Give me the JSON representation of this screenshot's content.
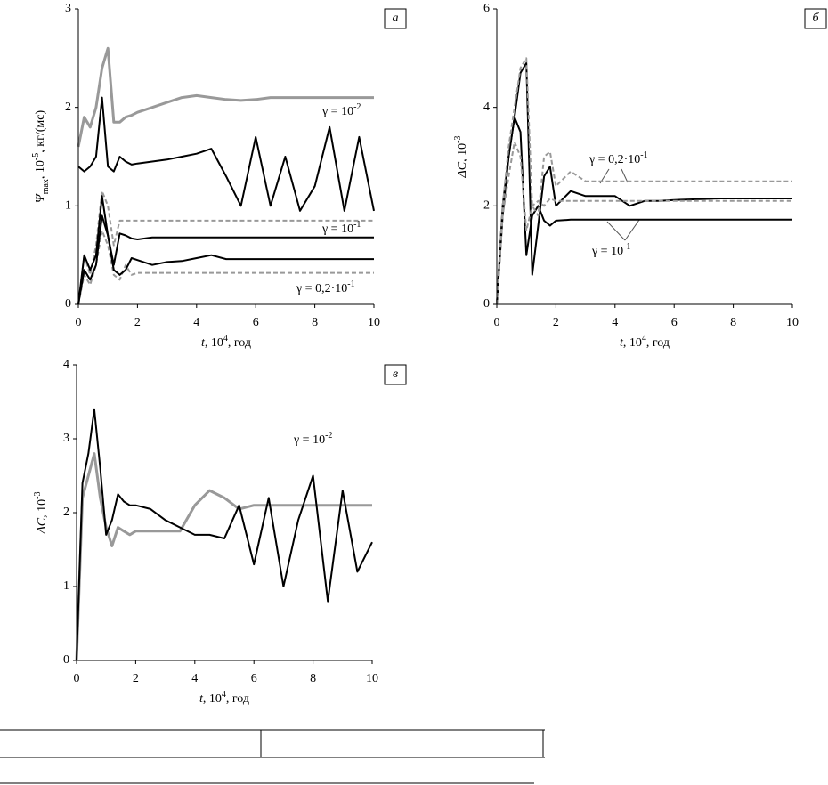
{
  "chart_data": [
    {
      "type": "line",
      "panel": "а",
      "xlabel": [
        {
          "text": "t"
        },
        {
          "text": ", 10"
        },
        {
          "sup": "4"
        },
        {
          "text": ", год"
        }
      ],
      "ylabel": [
        {
          "text": "Ψ"
        },
        {
          "sub": "max"
        },
        {
          "text": ", 10"
        },
        {
          "sup": "-5"
        },
        {
          "text": ", кг/(мс)"
        }
      ],
      "x": [
        0,
        0.2,
        0.4,
        0.6,
        0.8,
        1.0,
        1.2,
        1.4,
        1.6,
        1.8,
        2,
        2.5,
        3,
        3.5,
        4,
        4.5,
        5,
        5.5,
        6,
        6.5,
        7,
        7.5,
        8,
        8.5,
        9,
        9.5,
        10
      ],
      "xlim": [
        0,
        10
      ],
      "xticks": [
        0,
        2,
        4,
        6,
        8,
        10
      ],
      "ylim": [
        0,
        3
      ],
      "yticks": [
        0,
        1,
        2,
        3
      ],
      "series": [
        {
          "color": "#999999",
          "dash": false,
          "width": 3,
          "values": [
            1.6,
            1.9,
            1.8,
            2.0,
            2.4,
            2.6,
            1.85,
            1.85,
            1.9,
            1.92,
            1.95,
            2.0,
            2.05,
            2.1,
            2.12,
            2.1,
            2.08,
            2.07,
            2.08,
            2.1,
            2.1,
            2.1,
            2.1,
            2.1,
            2.1,
            2.1,
            2.1
          ]
        },
        {
          "color": "#000000",
          "dash": false,
          "width": 2,
          "values": [
            1.4,
            1.35,
            1.4,
            1.5,
            2.1,
            1.4,
            1.35,
            1.5,
            1.45,
            1.42,
            1.43,
            1.45,
            1.47,
            1.5,
            1.53,
            1.58,
            1.3,
            1.0,
            1.7,
            1.0,
            1.5,
            0.95,
            1.2,
            1.8,
            0.95,
            1.7,
            0.95
          ]
        },
        {
          "color": "#999999",
          "dash": true,
          "width": 2,
          "values": [
            0,
            0.5,
            0.3,
            0.6,
            1.15,
            1.0,
            0.6,
            0.85,
            0.85,
            0.85,
            0.85,
            0.85,
            0.85,
            0.85,
            0.85,
            0.85,
            0.85,
            0.85,
            0.85,
            0.85,
            0.85,
            0.85,
            0.85,
            0.85,
            0.85,
            0.85,
            0.85
          ]
        },
        {
          "color": "#000000",
          "dash": false,
          "width": 2,
          "values": [
            0,
            0.5,
            0.35,
            0.5,
            1.1,
            0.7,
            0.4,
            0.72,
            0.7,
            0.67,
            0.66,
            0.68,
            0.68,
            0.68,
            0.68,
            0.68,
            0.68,
            0.68,
            0.68,
            0.68,
            0.68,
            0.68,
            0.68,
            0.68,
            0.68,
            0.68,
            0.68
          ]
        },
        {
          "color": "#999999",
          "dash": true,
          "width": 2,
          "values": [
            0,
            0.3,
            0.2,
            0.4,
            0.75,
            0.6,
            0.3,
            0.25,
            0.4,
            0.3,
            0.32,
            0.32,
            0.32,
            0.32,
            0.32,
            0.32,
            0.32,
            0.32,
            0.32,
            0.32,
            0.32,
            0.32,
            0.32,
            0.32,
            0.32,
            0.32,
            0.32
          ]
        },
        {
          "color": "#000000",
          "dash": false,
          "width": 2,
          "values": [
            0,
            0.35,
            0.25,
            0.4,
            0.9,
            0.7,
            0.35,
            0.3,
            0.35,
            0.47,
            0.45,
            0.4,
            0.43,
            0.44,
            0.47,
            0.5,
            0.46,
            0.46,
            0.46,
            0.46,
            0.46,
            0.46,
            0.46,
            0.46,
            0.46,
            0.46,
            0.46
          ]
        }
      ],
      "annotations": [
        [
          {
            "text": "γ = 10"
          },
          {
            "sup": "-2"
          }
        ],
        [
          {
            "text": "γ = 10"
          },
          {
            "sup": "-1"
          }
        ],
        [
          {
            "text": "γ = 0,2·10"
          },
          {
            "sup": "-1"
          }
        ]
      ]
    },
    {
      "type": "line",
      "panel": "б",
      "xlabel": [
        {
          "text": "t"
        },
        {
          "text": ", 10"
        },
        {
          "sup": "4"
        },
        {
          "text": ", год"
        }
      ],
      "ylabel": [
        {
          "text": "ΔC"
        },
        {
          "text": ", 10"
        },
        {
          "sup": "-3"
        }
      ],
      "x": [
        0,
        0.2,
        0.4,
        0.6,
        0.8,
        1.0,
        1.2,
        1.4,
        1.6,
        1.8,
        2,
        2.5,
        3,
        3.5,
        4,
        4.5,
        5,
        5.5,
        6,
        6.5,
        7,
        7.5,
        8,
        8.5,
        9,
        9.5,
        10
      ],
      "xlim": [
        0,
        10
      ],
      "xticks": [
        0,
        2,
        4,
        6,
        8,
        10
      ],
      "ylim": [
        0,
        6
      ],
      "yticks": [
        0,
        2,
        4,
        6
      ],
      "series": [
        {
          "color": "#000000",
          "dash": false,
          "width": 2,
          "values": [
            0,
            1.8,
            3.0,
            3.8,
            3.5,
            1.0,
            1.8,
            2.0,
            1.7,
            1.6,
            1.7,
            1.72,
            1.72,
            1.72,
            1.72,
            1.72,
            1.72,
            1.72,
            1.72,
            1.72,
            1.72,
            1.72,
            1.72,
            1.72,
            1.72,
            1.72,
            1.72
          ]
        },
        {
          "color": "#000000",
          "dash": false,
          "width": 2,
          "values": [
            0,
            2.0,
            3.0,
            3.8,
            4.7,
            4.9,
            0.6,
            1.6,
            2.6,
            2.8,
            2.0,
            2.3,
            2.2,
            2.2,
            2.2,
            2.0,
            2.1,
            2.1,
            2.12,
            2.13,
            2.14,
            2.15,
            2.15,
            2.15,
            2.15,
            2.15,
            2.15
          ]
        },
        {
          "color": "#999999",
          "dash": true,
          "width": 2,
          "values": [
            0,
            2.0,
            3.2,
            4.0,
            4.8,
            5.0,
            2.0,
            1.8,
            3.0,
            3.1,
            2.4,
            2.7,
            2.5,
            2.5,
            2.5,
            2.5,
            2.5,
            2.5,
            2.5,
            2.5,
            2.5,
            2.5,
            2.5,
            2.5,
            2.5,
            2.5,
            2.5
          ]
        },
        {
          "color": "#999999",
          "dash": true,
          "width": 2,
          "values": [
            0,
            1.8,
            2.6,
            3.3,
            3.0,
            1.5,
            2.0,
            2.1,
            2.0,
            2.15,
            2.1,
            2.1,
            2.1,
            2.1,
            2.1,
            2.1,
            2.1,
            2.1,
            2.1,
            2.1,
            2.1,
            2.1,
            2.1,
            2.1,
            2.1,
            2.1,
            2.1
          ]
        }
      ],
      "annotations": [
        [
          {
            "text": "γ = 0,2·10"
          },
          {
            "sup": "-1"
          }
        ],
        [
          {
            "text": "γ = 10"
          },
          {
            "sup": "-1"
          }
        ]
      ]
    },
    {
      "type": "line",
      "panel": "в",
      "xlabel": [
        {
          "text": "t"
        },
        {
          "text": ", 10"
        },
        {
          "sup": "4"
        },
        {
          "text": ", год"
        }
      ],
      "ylabel": [
        {
          "text": "ΔC"
        },
        {
          "text": ", 10"
        },
        {
          "sup": "-3"
        }
      ],
      "x": [
        0,
        0.2,
        0.4,
        0.6,
        0.8,
        1.0,
        1.2,
        1.4,
        1.6,
        1.8,
        2,
        2.5,
        3,
        3.5,
        4,
        4.5,
        5,
        5.5,
        6,
        6.5,
        7,
        7.5,
        8,
        8.5,
        9,
        9.5,
        10
      ],
      "xlim": [
        0,
        10
      ],
      "xticks": [
        0,
        2,
        4,
        6,
        8,
        10
      ],
      "ylim": [
        0,
        4
      ],
      "yticks": [
        0,
        1,
        2,
        3,
        4
      ],
      "series": [
        {
          "color": "#999999",
          "dash": false,
          "width": 3,
          "values": [
            0,
            2.2,
            2.5,
            2.8,
            2.2,
            1.8,
            1.55,
            1.8,
            1.75,
            1.7,
            1.75,
            1.75,
            1.75,
            1.75,
            2.1,
            2.3,
            2.2,
            2.05,
            2.1,
            2.1,
            2.1,
            2.1,
            2.1,
            2.1,
            2.1,
            2.1,
            2.1
          ]
        },
        {
          "color": "#000000",
          "dash": false,
          "width": 2,
          "values": [
            0,
            2.4,
            2.8,
            3.4,
            2.6,
            1.7,
            1.9,
            2.25,
            2.15,
            2.1,
            2.1,
            2.05,
            1.9,
            1.8,
            1.7,
            1.7,
            1.65,
            2.1,
            1.3,
            2.2,
            1.0,
            1.9,
            2.5,
            0.8,
            2.3,
            1.2,
            1.6
          ]
        }
      ],
      "annotations": [
        [
          {
            "text": "γ = 10"
          },
          {
            "sup": "-2"
          }
        ]
      ]
    }
  ]
}
